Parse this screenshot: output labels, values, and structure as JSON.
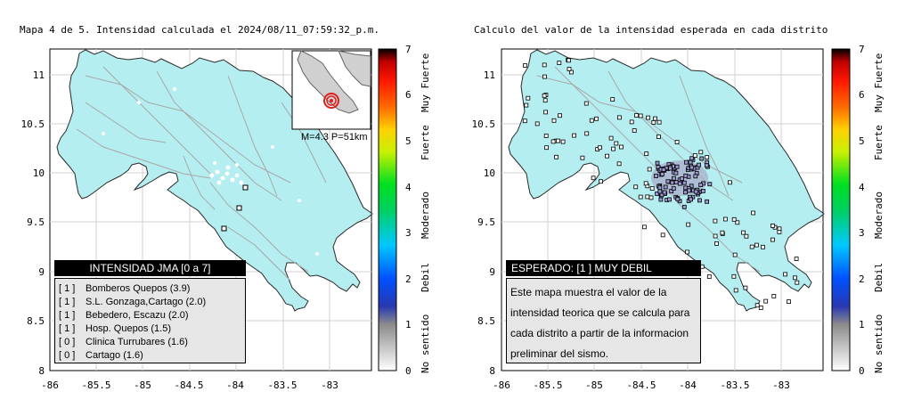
{
  "left_panel": {
    "title": "Mapa 4 de 5. Intensidad calculada el 2024/08/11_07:59:32_p.m.",
    "inset_caption": "M=4.3 P=51km",
    "legend_title": "INTENSIDAD JMA [0 a 7]",
    "stations": [
      {
        "level": "[ 1 ]",
        "name": "Bomberos Quepos (3.9)"
      },
      {
        "level": "[ 1 ]",
        "name": "S.L. Gonzaga,Cartago (2.0)"
      },
      {
        "level": "[ 1 ]",
        "name": "Bebedero, Escazu (2.0)"
      },
      {
        "level": "[ 1 ]",
        "name": "Hosp. Quepos (1.5)"
      },
      {
        "level": "[ 0 ]",
        "name": "Clinica Turrubares (1.6)"
      },
      {
        "level": "[ 0 ]",
        "name": "Cartago (1.6)"
      }
    ]
  },
  "right_panel": {
    "title": "Calculo del valor de la intensidad esperada en cada distrito",
    "legend_title": "ESPERADO: [1 ] MUY DEBIL",
    "info_text": "Este mapa muestra el valor de la intensidad teorica que se calcula para cada distrito a partir de la informacion preliminar del sismo."
  },
  "axes": {
    "x_ticks": [
      "-86",
      "-85.5",
      "-85",
      "-84.5",
      "-84",
      "-83.5",
      "-83"
    ],
    "y_ticks": [
      "11",
      "10.5",
      "10",
      "9.5",
      "9",
      "8.5",
      "8"
    ]
  },
  "colorbar": {
    "tick_labels": [
      "0",
      "1",
      "2",
      "3",
      "4",
      "5",
      "6",
      "7"
    ],
    "category_labels": [
      "No sentido",
      "Debil",
      "Moderado",
      "Fuerte",
      "Muy Fuerte"
    ]
  },
  "colors": {
    "land": "#b4eef0",
    "ocean": "#ffffff",
    "grid": "#c8c8c8",
    "rivers": "#a8a8a8",
    "epicenter": "#e0201c"
  }
}
